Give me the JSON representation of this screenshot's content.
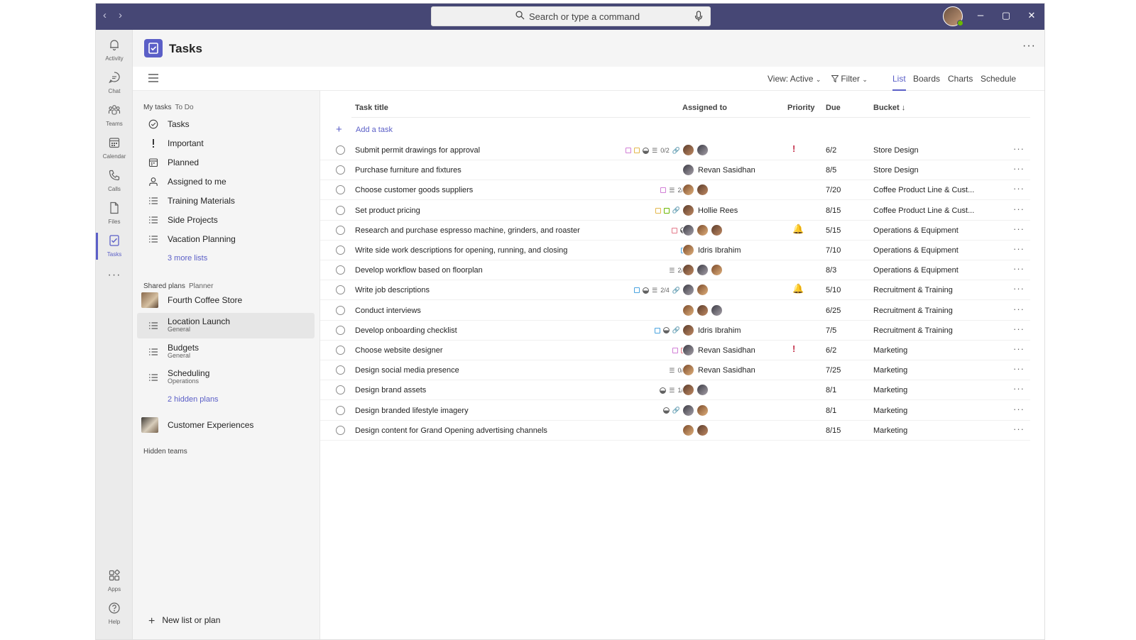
{
  "titlebar": {
    "back": "‹",
    "forward": "›",
    "search_placeholder": "Search or type a command",
    "minimize": "–",
    "maximize": "▢",
    "close": "✕"
  },
  "rail": [
    {
      "label": "Activity",
      "icon": "bell-icon"
    },
    {
      "label": "Chat",
      "icon": "chat-icon"
    },
    {
      "label": "Teams",
      "icon": "teams-icon"
    },
    {
      "label": "Calendar",
      "icon": "calendar-icon"
    },
    {
      "label": "Calls",
      "icon": "phone-icon"
    },
    {
      "label": "Files",
      "icon": "file-icon"
    },
    {
      "label": "Tasks",
      "icon": "tasks-icon",
      "active": true
    },
    {
      "label": "Apps",
      "icon": "apps-icon"
    },
    {
      "label": "Help",
      "icon": "help-icon"
    }
  ],
  "rail_more": "···",
  "app": {
    "title": "Tasks",
    "more": "···"
  },
  "toolbar": {
    "view_label": "View: Active",
    "filter_label": "Filter",
    "tabs": [
      "List",
      "Boards",
      "Charts",
      "Schedule"
    ],
    "active_tab": "List"
  },
  "leftnav": {
    "my_tasks": {
      "label": "My tasks",
      "sub": "To Do"
    },
    "items": [
      {
        "label": "Tasks",
        "icon": "check-circle-icon"
      },
      {
        "label": "Important",
        "icon": "exclamation-icon"
      },
      {
        "label": "Planned",
        "icon": "calendar-icon"
      },
      {
        "label": "Assigned to me",
        "icon": "person-icon"
      },
      {
        "label": "Training Materials",
        "icon": "list-icon"
      },
      {
        "label": "Side Projects",
        "icon": "list-icon"
      },
      {
        "label": "Vacation Planning",
        "icon": "list-icon"
      }
    ],
    "more_lists": "3 more lists",
    "shared_plans": {
      "label": "Shared plans",
      "sub": "Planner"
    },
    "team1": "Fourth Coffee Store",
    "plans": [
      {
        "label": "Location Launch",
        "sub": "General",
        "selected": true
      },
      {
        "label": "Budgets",
        "sub": "General"
      },
      {
        "label": "Scheduling",
        "sub": "Operations"
      }
    ],
    "hidden_plans": "2 hidden plans",
    "team2": "Customer Experiences",
    "hidden_teams": "Hidden teams",
    "new_list": "New list or plan"
  },
  "table": {
    "headers": {
      "title": "Task title",
      "assigned": "Assigned to",
      "priority": "Priority",
      "due": "Due",
      "bucket": "Bucket ↓"
    },
    "add_task": "Add a task",
    "rows": [
      {
        "title": "Submit permit drawings for approval",
        "labels": [
          "#d17fd6",
          "#e3b84c"
        ],
        "progress": true,
        "checklist": "0/2",
        "attach": "1",
        "assignees": 2,
        "name": "",
        "priority": "!",
        "due": "6/2",
        "bucket": "Store Design"
      },
      {
        "title": "Purchase furniture and fixtures",
        "labels": [],
        "progress": false,
        "checklist": "",
        "attach": "",
        "assignees": 1,
        "name": "Revan Sasidhan",
        "priority": "",
        "due": "8/5",
        "bucket": "Store Design"
      },
      {
        "title": "Choose customer goods suppliers",
        "labels": [
          "#d17fd6"
        ],
        "progress": false,
        "checklist": "2/6",
        "attach": "",
        "assignees": 2,
        "name": "",
        "priority": "",
        "due": "7/20",
        "bucket": "Coffee Product Line & Cust..."
      },
      {
        "title": "Set product pricing",
        "labels": [
          "#e3b84c",
          "#6bb700"
        ],
        "progress": false,
        "checklist": "",
        "attach": "1",
        "assignees": 1,
        "name": "Hollie Rees",
        "priority": "",
        "due": "8/15",
        "bucket": "Coffee Product Line & Cust..."
      },
      {
        "title": "Research and purchase espresso machine, grinders, and roaster",
        "labels": [
          "#e37a8a"
        ],
        "progress": true,
        "checklist": "",
        "attach": "",
        "assignees": 3,
        "name": "",
        "priority": "🔔",
        "due": "5/15",
        "bucket": "Operations & Equipment"
      },
      {
        "title": "Write side work descriptions for opening, running, and closing",
        "labels": [
          "#4aa3df"
        ],
        "progress": false,
        "checklist": "",
        "attach": "",
        "assignees": 1,
        "name": "Idris Ibrahim",
        "priority": "",
        "due": "7/10",
        "bucket": "Operations & Equipment"
      },
      {
        "title": "Develop workflow based on floorplan",
        "labels": [],
        "progress": false,
        "checklist": "2/3",
        "attach": "",
        "assignees": 3,
        "name": "",
        "priority": "",
        "due": "8/3",
        "bucket": "Operations & Equipment"
      },
      {
        "title": "Write job descriptions",
        "labels": [
          "#4aa3df"
        ],
        "progress": true,
        "checklist": "2/4",
        "attach": "2",
        "assignees": 2,
        "name": "",
        "priority": "🔔",
        "due": "5/10",
        "bucket": "Recruitment & Training"
      },
      {
        "title": "Conduct interviews",
        "labels": [],
        "progress": false,
        "checklist": "",
        "attach": "",
        "assignees": 3,
        "name": "",
        "priority": "",
        "due": "6/25",
        "bucket": "Recruitment & Training"
      },
      {
        "title": "Develop onboarding checklist",
        "labels": [
          "#4aa3df"
        ],
        "progress": true,
        "checklist": "",
        "attach": "1",
        "assignees": 1,
        "name": "Idris Ibrahim",
        "priority": "",
        "due": "7/5",
        "bucket": "Recruitment & Training"
      },
      {
        "title": "Choose website designer",
        "labels": [
          "#d17fd6",
          "#e37a8a"
        ],
        "progress": false,
        "checklist": "",
        "attach": "",
        "assignees": 1,
        "name": "Revan Sasidhan",
        "priority": "!",
        "due": "6/2",
        "bucket": "Marketing"
      },
      {
        "title": "Design social media presence",
        "labels": [],
        "progress": false,
        "checklist": "0/3",
        "attach": "",
        "assignees": 1,
        "name": "Revan Sasidhan",
        "priority": "",
        "due": "7/25",
        "bucket": "Marketing"
      },
      {
        "title": "Design brand assets",
        "labels": [],
        "progress": true,
        "checklist": "1/4",
        "attach": "",
        "assignees": 2,
        "name": "",
        "priority": "",
        "due": "8/1",
        "bucket": "Marketing"
      },
      {
        "title": "Design branded lifestyle imagery",
        "labels": [],
        "progress": true,
        "checklist": "",
        "attach": "3",
        "assignees": 2,
        "name": "",
        "priority": "",
        "due": "8/1",
        "bucket": "Marketing"
      },
      {
        "title": "Design content for Grand Opening advertising channels",
        "labels": [],
        "progress": false,
        "checklist": "",
        "attach": "",
        "assignees": 2,
        "name": "",
        "priority": "",
        "due": "8/15",
        "bucket": "Marketing"
      }
    ],
    "row_more": "···"
  },
  "colors": {
    "accent": "#5b5fc7",
    "titlebar": "#464775",
    "urgent": "#c4314b"
  }
}
